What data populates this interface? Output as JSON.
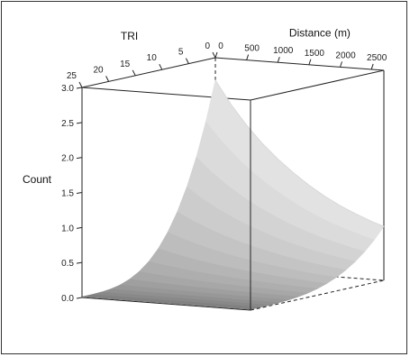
{
  "chart_data": {
    "type": "surface",
    "z_axis": {
      "label": "Count",
      "range": [
        0,
        3
      ],
      "ticks": [
        0.0,
        0.5,
        1.0,
        1.5,
        2.0,
        2.5,
        3.0
      ],
      "tick_labels": [
        "0.0",
        "0.5",
        "1.0",
        "1.5",
        "2.0",
        "2.5",
        "3.0"
      ]
    },
    "tri_axis": {
      "label": "TRI",
      "range": [
        0,
        25
      ],
      "ticks": [
        0,
        5,
        10,
        15,
        20,
        25
      ],
      "tick_labels": [
        "0",
        "5",
        "10",
        "15",
        "20",
        "25"
      ]
    },
    "distance_axis": {
      "label": "Distance (m)",
      "range": [
        0,
        2700
      ],
      "ticks": [
        0,
        500,
        1000,
        1500,
        2000,
        2500
      ],
      "tick_labels": [
        "0",
        "500",
        "1000",
        "1500",
        "2000",
        "2500"
      ]
    },
    "surface": {
      "distance_m": [
        0,
        250,
        500,
        750,
        1000,
        1250,
        1500,
        1750,
        2000,
        2250,
        2500,
        2700
      ],
      "count_at_tri_0": [
        2.68,
        2.35,
        2.07,
        1.83,
        1.62,
        1.44,
        1.28,
        1.14,
        1.02,
        0.92,
        0.83,
        0.77
      ],
      "count_at_tri_25": [
        0.01,
        0.01,
        0.01,
        0.01,
        0.01,
        0.01,
        0.01,
        0.01,
        0.01,
        0.01,
        0.01,
        0.01
      ]
    },
    "colors": {
      "surface_top": "#e2e2e2",
      "surface_bottom": "#7a7a7a",
      "box": "#222222"
    }
  }
}
